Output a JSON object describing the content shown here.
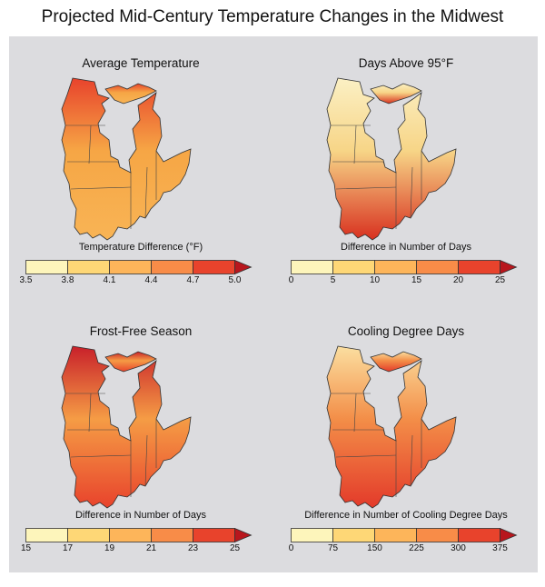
{
  "title": "Projected Mid-Century Temperature Changes in the Midwest",
  "panels": [
    {
      "title": "Average Temperature",
      "legend_label": "Temperature Difference (°F)",
      "ticks": [
        "3.5",
        "3.8",
        "4.1",
        "4.4",
        "4.7",
        "5.0"
      ],
      "colors": [
        "#fdf5bb",
        "#fed776",
        "#fdb55a",
        "#f88c48",
        "#e8432c"
      ],
      "arrow_color": "#b8161d",
      "map_palette": {
        "base": "#f6a645",
        "north": "#e8432c",
        "south": "#f8b455"
      }
    },
    {
      "title": "Days Above 95°F",
      "legend_label": "Difference in Number of Days",
      "ticks": [
        "0",
        "5",
        "10",
        "15",
        "20",
        "25"
      ],
      "colors": [
        "#fdf5bb",
        "#fed776",
        "#fdb55a",
        "#f88c48",
        "#e8432c"
      ],
      "arrow_color": "#b8161d",
      "map_palette": {
        "base": "#f7d587",
        "north": "#fbf0c4",
        "south": "#d8301f"
      }
    },
    {
      "title": "Frost-Free Season",
      "legend_label": "Difference in Number of Days",
      "ticks": [
        "15",
        "17",
        "19",
        "21",
        "23",
        "25"
      ],
      "colors": [
        "#fdf5bb",
        "#fed776",
        "#fdb55a",
        "#f88c48",
        "#e8432c"
      ],
      "arrow_color": "#b8161d",
      "map_palette": {
        "base": "#f59c45",
        "north": "#c8202a",
        "south": "#e8432c"
      }
    },
    {
      "title": "Cooling Degree Days",
      "legend_label": "Difference in Number of Cooling Degree Days",
      "ticks": [
        "0",
        "75",
        "150",
        "225",
        "300",
        "375"
      ],
      "colors": [
        "#fdf5bb",
        "#fed776",
        "#fdb55a",
        "#f88c48",
        "#e8432c"
      ],
      "arrow_color": "#b8161d",
      "map_palette": {
        "base": "#f38e48",
        "north": "#fbdfa0",
        "south": "#e33a2a"
      }
    }
  ]
}
